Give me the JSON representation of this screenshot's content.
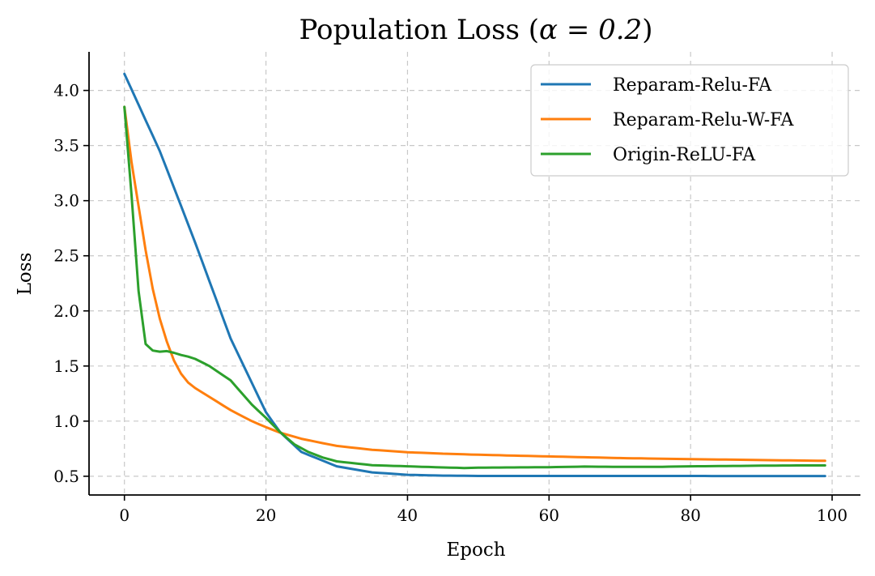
{
  "chart_data": {
    "type": "line",
    "title_prefix": "Population Loss (",
    "title_math": "α = 0.2",
    "title_suffix": ")",
    "xlabel": "Epoch",
    "ylabel": "Loss",
    "xlim": [
      -5,
      104
    ],
    "ylim": [
      0.33,
      4.35
    ],
    "xticks": [
      0,
      20,
      40,
      60,
      80,
      100
    ],
    "yticks": [
      0.5,
      1.0,
      1.5,
      2.0,
      2.5,
      3.0,
      3.5,
      4.0
    ],
    "xtick_labels": [
      "0",
      "20",
      "40",
      "60",
      "80",
      "100"
    ],
    "ytick_labels": [
      "0.5",
      "1.0",
      "1.5",
      "2.0",
      "2.5",
      "3.0",
      "3.5",
      "4.0"
    ],
    "grid": true,
    "legend_position": "top-right",
    "series": [
      {
        "name": "Reparam-Relu-FA",
        "color": "#1f77b4",
        "keypoints": [
          [
            0,
            4.15
          ],
          [
            5,
            3.45
          ],
          [
            10,
            2.62
          ],
          [
            15,
            1.75
          ],
          [
            20,
            1.08
          ],
          [
            22,
            0.9
          ],
          [
            25,
            0.72
          ],
          [
            30,
            0.59
          ],
          [
            35,
            0.535
          ],
          [
            40,
            0.513
          ],
          [
            45,
            0.506
          ],
          [
            50,
            0.503
          ],
          [
            99,
            0.502
          ]
        ]
      },
      {
        "name": "Reparam-Relu-W-FA",
        "color": "#ff7f0e",
        "keypoints": [
          [
            0,
            3.85
          ],
          [
            1,
            3.35
          ],
          [
            2,
            2.95
          ],
          [
            3,
            2.55
          ],
          [
            4,
            2.2
          ],
          [
            5,
            1.93
          ],
          [
            6,
            1.72
          ],
          [
            7,
            1.55
          ],
          [
            8,
            1.43
          ],
          [
            9,
            1.35
          ],
          [
            10,
            1.3
          ],
          [
            12,
            1.22
          ],
          [
            15,
            1.1
          ],
          [
            18,
            1.0
          ],
          [
            20,
            0.945
          ],
          [
            22,
            0.895
          ],
          [
            25,
            0.84
          ],
          [
            28,
            0.8
          ],
          [
            30,
            0.775
          ],
          [
            35,
            0.74
          ],
          [
            40,
            0.718
          ],
          [
            45,
            0.705
          ],
          [
            50,
            0.695
          ],
          [
            60,
            0.68
          ],
          [
            70,
            0.665
          ],
          [
            80,
            0.655
          ],
          [
            90,
            0.647
          ],
          [
            99,
            0.64
          ]
        ]
      },
      {
        "name": "Origin-ReLU-FA",
        "color": "#2ca02c",
        "keypoints": [
          [
            0,
            3.85
          ],
          [
            1,
            3.05
          ],
          [
            2,
            2.18
          ],
          [
            3,
            1.7
          ],
          [
            4,
            1.64
          ],
          [
            5,
            1.63
          ],
          [
            6,
            1.635
          ],
          [
            7,
            1.62
          ],
          [
            8,
            1.6
          ],
          [
            9,
            1.585
          ],
          [
            10,
            1.565
          ],
          [
            12,
            1.5
          ],
          [
            15,
            1.37
          ],
          [
            18,
            1.15
          ],
          [
            20,
            1.03
          ],
          [
            22,
            0.9
          ],
          [
            24,
            0.79
          ],
          [
            26,
            0.72
          ],
          [
            28,
            0.67
          ],
          [
            30,
            0.635
          ],
          [
            35,
            0.6
          ],
          [
            40,
            0.59
          ],
          [
            45,
            0.58
          ],
          [
            48,
            0.575
          ],
          [
            50,
            0.578
          ],
          [
            55,
            0.58
          ],
          [
            60,
            0.582
          ],
          [
            65,
            0.588
          ],
          [
            70,
            0.585
          ],
          [
            75,
            0.585
          ],
          [
            80,
            0.59
          ],
          [
            85,
            0.593
          ],
          [
            90,
            0.596
          ],
          [
            95,
            0.598
          ],
          [
            99,
            0.598
          ]
        ]
      }
    ]
  }
}
